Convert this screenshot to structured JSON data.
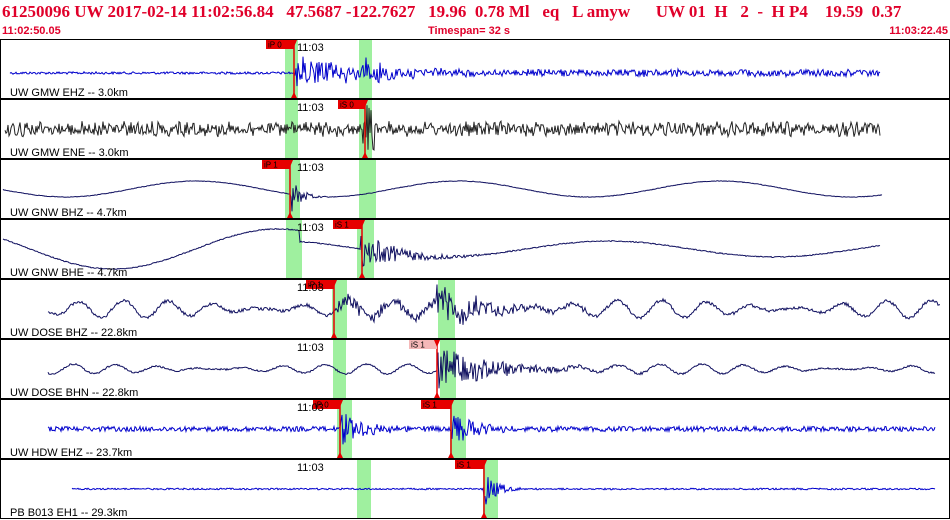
{
  "header": {
    "title": "61250096 UW 2017-02-14 11:02:56.84   47.5687 -122.7627   19.96  0.78 Ml   eq   L amyw      UW 01  H   2  -  H P4    19.59  0.37",
    "start_time": "11:02:50.05",
    "timespan": "Timespan=  32 s",
    "end_time": "11:03:22.45"
  },
  "colors": {
    "text_red": "#e0002a",
    "pick_red": "#e60000",
    "pick_pink": "#f5b8b8",
    "window_green": "#9ff09f",
    "trace_blue": "#0000cc",
    "trace_dark": "#222222",
    "trace_navy": "#101060"
  },
  "traces": [
    {
      "label": "UW GMW EHZ -- 3.0km",
      "time_label": "11:03",
      "color": "blue",
      "type": "event",
      "picks": [
        {
          "label": "iP 0",
          "style": "red"
        }
      ]
    },
    {
      "label": "UW GMW ENE -- 3.0km",
      "time_label": "11:03",
      "color": "dark",
      "type": "noise",
      "picks": [
        {
          "label": "iS 0",
          "style": "red"
        }
      ]
    },
    {
      "label": "UW GNW BHZ -- 4.7km",
      "time_label": "11:03",
      "color": "navy",
      "type": "swell",
      "picks": [
        {
          "label": "iP 1",
          "style": "red"
        }
      ]
    },
    {
      "label": "UW GNW BHE -- 4.7km",
      "time_label": "11:03",
      "color": "navy",
      "type": "longwave",
      "picks": [
        {
          "label": "iS 1",
          "style": "red"
        }
      ]
    },
    {
      "label": "UW DOSE BHZ -- 22.8km",
      "time_label": "11:03",
      "color": "navy",
      "type": "wavy",
      "picks": [
        {
          "label": "iP 1",
          "style": "red"
        }
      ]
    },
    {
      "label": "UW DOSE BHN -- 22.8km",
      "time_label": "11:03",
      "color": "navy",
      "type": "wavy2",
      "picks": [
        {
          "label": "iS 1",
          "style": "pink"
        }
      ]
    },
    {
      "label": "UW HDW EHZ -- 23.7km",
      "time_label": "11:03",
      "color": "blue",
      "type": "event2",
      "picks": [
        {
          "label": "iP 0",
          "style": "red"
        },
        {
          "label": "iS 1",
          "style": "red"
        }
      ]
    },
    {
      "label": "PB B013 EH1 -- 29.3km",
      "time_label": "11:03",
      "color": "blue",
      "type": "late",
      "picks": [
        {
          "label": "iS 1",
          "style": "red"
        }
      ]
    }
  ]
}
